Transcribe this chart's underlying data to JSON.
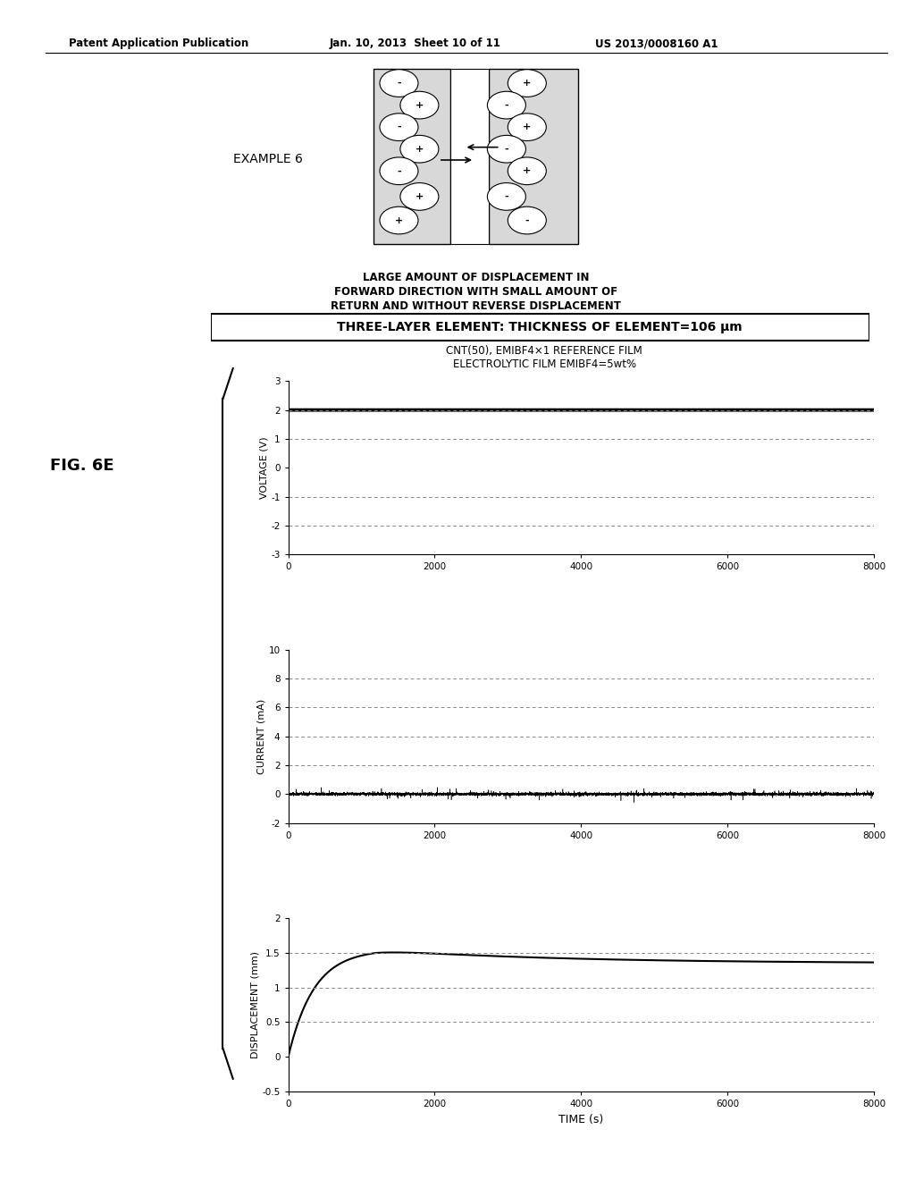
{
  "header_left": "Patent Application Publication",
  "header_mid": "Jan. 10, 2013  Sheet 10 of 11",
  "header_right": "US 2013/0008160 A1",
  "fig_label": "FIG. 6E",
  "example_label": "EXAMPLE 6",
  "caption_line1": "LARGE AMOUNT OF DISPLACEMENT IN",
  "caption_line2": "FORWARD DIRECTION WITH SMALL AMOUNT OF",
  "caption_line3": "RETURN AND WITHOUT REVERSE DISPLACEMENT",
  "box_label": "THREE-LAYER ELEMENT: THICKNESS OF ELEMENT=106 μm",
  "chart_title_line1": "CNT(50), EMIBF4×1 REFERENCE FILM",
  "chart_title_line2": "ELECTROLYTIC FILM EMIBF4=5wt%",
  "voltage_ylabel": "VOLTAGE (V)",
  "current_ylabel": "CURRENT (mA)",
  "displacement_ylabel": "DISPLACEMENT (mm)",
  "xlabel": "TIME (s)",
  "voltage_ylim": [
    -3,
    3
  ],
  "voltage_yticks": [
    -3,
    -2,
    -1,
    0,
    1,
    2,
    3
  ],
  "voltage_constant": 2.0,
  "current_ylim": [
    -2,
    10
  ],
  "current_yticks": [
    -2,
    0,
    2,
    4,
    6,
    8,
    10
  ],
  "displacement_ylim": [
    -0.5,
    2.0
  ],
  "displacement_yticks": [
    -0.5,
    0,
    0.5,
    1.0,
    1.5,
    2.0
  ],
  "xlim": [
    0,
    8000
  ],
  "xticks": [
    0,
    2000,
    4000,
    6000,
    8000
  ],
  "background_color": "#ffffff",
  "line_color": "#000000",
  "dashed_color": "#888888",
  "diag_left_signs": [
    "-",
    "+",
    "-",
    "+",
    "-",
    "+",
    "+"
  ],
  "diag_right_signs": [
    "+",
    "-",
    "+",
    "-",
    "+",
    "-",
    "-"
  ]
}
